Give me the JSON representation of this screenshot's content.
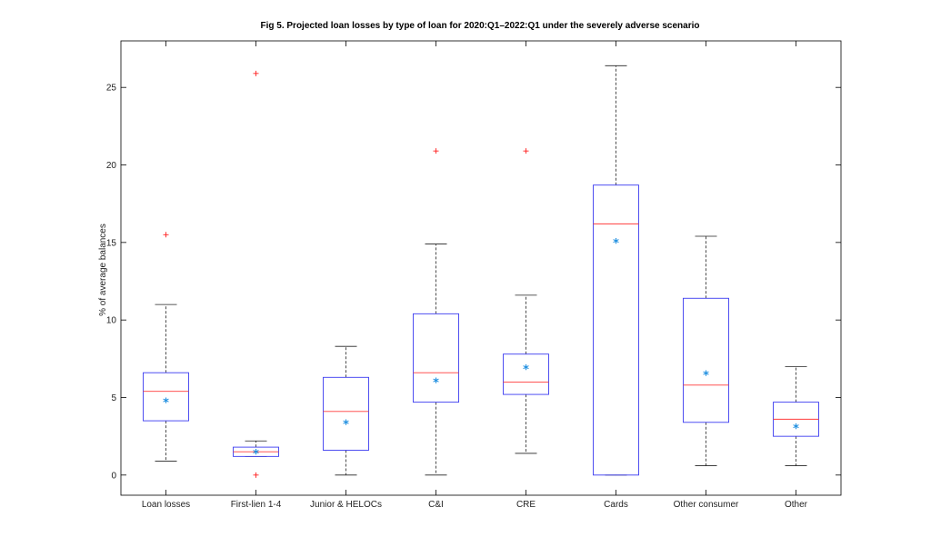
{
  "chart_data": {
    "type": "box",
    "title": "Fig 5. Projected loan losses by type of loan for 2020:Q1–2022:Q1 under the severely adverse scenario",
    "xlabel": "",
    "ylabel": "% of average balances",
    "ylim": [
      -1.3,
      28
    ],
    "yticks": [
      0,
      5,
      10,
      15,
      20,
      25
    ],
    "grid": false,
    "legend": "none",
    "colors": {
      "box": "#3b3bf0",
      "median": "#ff3b3b",
      "whisker": "#222222",
      "outlier": "#ff2020",
      "mean": "#1f8fe0",
      "axis": "#000000"
    },
    "categories": [
      "Loan losses",
      "First-lien 1-4",
      "Junior & HELOCs",
      "C&I",
      "CRE",
      "Cards",
      "Other consumer",
      "Other"
    ],
    "boxes": [
      {
        "category": "Loan losses",
        "whisker_low": 0.9,
        "q1": 3.5,
        "median": 5.4,
        "q3": 6.6,
        "whisker_high": 11.0,
        "mean": 4.7,
        "outliers": [
          15.5
        ]
      },
      {
        "category": "First-lien 1-4",
        "whisker_low": 1.2,
        "q1": 1.2,
        "median": 1.5,
        "q3": 1.8,
        "whisker_high": 2.2,
        "mean": 1.4,
        "outliers": [
          25.9,
          0.0
        ]
      },
      {
        "category": "Junior & HELOCs",
        "whisker_low": 0.0,
        "q1": 1.6,
        "median": 4.1,
        "q3": 6.3,
        "whisker_high": 8.3,
        "mean": 3.3,
        "outliers": []
      },
      {
        "category": "C&I",
        "whisker_low": 0.0,
        "q1": 4.7,
        "median": 6.6,
        "q3": 10.4,
        "whisker_high": 14.9,
        "mean": 6.0,
        "outliers": [
          20.9
        ]
      },
      {
        "category": "CRE",
        "whisker_low": 1.4,
        "q1": 5.2,
        "median": 6.0,
        "q3": 7.8,
        "whisker_high": 11.6,
        "mean": 6.85,
        "outliers": [
          20.9
        ]
      },
      {
        "category": "Cards",
        "whisker_low": 0.0,
        "q1": 0.0,
        "median": 16.2,
        "q3": 18.7,
        "whisker_high": 26.4,
        "mean": 15.0,
        "outliers": []
      },
      {
        "category": "Other consumer",
        "whisker_low": 0.6,
        "q1": 3.4,
        "median": 5.8,
        "q3": 11.4,
        "whisker_high": 15.4,
        "mean": 6.45,
        "outliers": []
      },
      {
        "category": "Other",
        "whisker_low": 0.6,
        "q1": 2.5,
        "median": 3.6,
        "q3": 4.7,
        "whisker_high": 7.0,
        "mean": 3.05,
        "outliers": []
      }
    ]
  }
}
